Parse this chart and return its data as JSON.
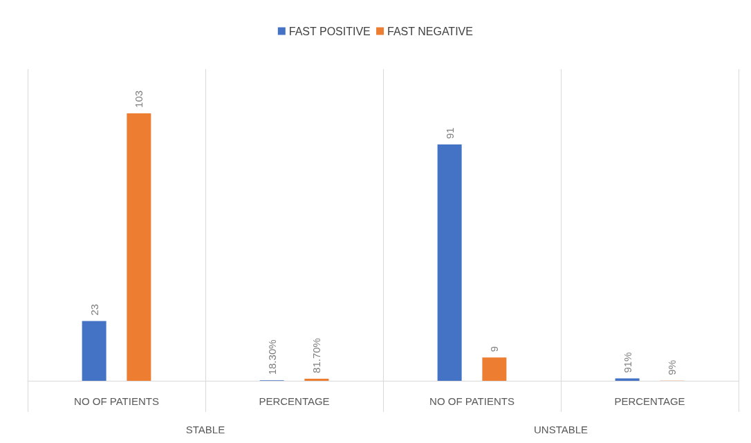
{
  "chart_data": {
    "type": "bar",
    "categories": [
      "NO OF PATIENTS",
      "PERCENTAGE",
      "NO OF PATIENTS",
      "PERCENTAGE"
    ],
    "series": [
      {
        "name": "FAST POSITIVE",
        "color": "#4472c4",
        "values": [
          23,
          0.183,
          91,
          0.91
        ],
        "value_labels": [
          "23",
          "18.30%",
          "91",
          "91%"
        ]
      },
      {
        "name": "FAST NEGATIVE",
        "color": "#ed7d31",
        "values": [
          103,
          0.817,
          9,
          0.09
        ],
        "value_labels": [
          "103",
          "81.70%",
          "9",
          "9%"
        ]
      }
    ],
    "annotations": [
      "STABLE",
      "UNSTABLE"
    ],
    "grid": "x",
    "legend": "top"
  }
}
